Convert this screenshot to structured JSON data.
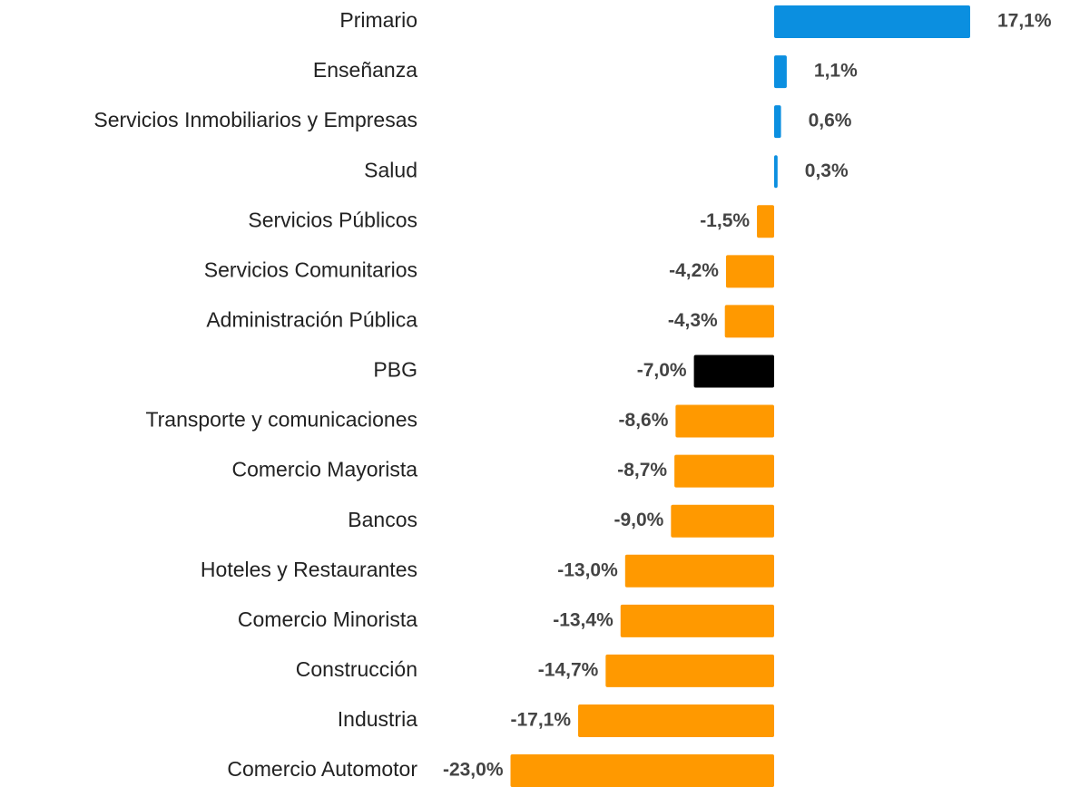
{
  "chart_data": {
    "type": "bar",
    "orientation": "horizontal",
    "categories": [
      "Primario",
      "Enseñanza",
      "Servicios Inmobiliarios y Empresas",
      "Salud",
      "Servicios Públicos",
      "Servicios Comunitarios",
      "Administración Pública",
      "PBG",
      "Transporte y comunicaciones",
      "Comercio Mayorista",
      "Bancos",
      "Hoteles y Restaurantes",
      "Comercio Minorista",
      "Construcción",
      "Industria",
      "Comercio Automotor"
    ],
    "values": [
      17.1,
      1.1,
      0.6,
      0.3,
      -1.5,
      -4.2,
      -4.3,
      -7.0,
      -8.6,
      -8.7,
      -9.0,
      -13.0,
      -13.4,
      -14.7,
      -17.1,
      -23.0
    ],
    "value_labels": [
      "17,1%",
      "1,1%",
      "0,6%",
      "0,3%",
      "-1,5%",
      "-4,2%",
      "-4,3%",
      "-7,0%",
      "-8,6%",
      "-8,7%",
      "-9,0%",
      "-13,0%",
      "-13,4%",
      "-14,7%",
      "-17,1%",
      "-23,0%"
    ],
    "colors": [
      "#0b8fe0",
      "#0b8fe0",
      "#0b8fe0",
      "#0b8fe0",
      "#ff9900",
      "#ff9900",
      "#ff9900",
      "#000000",
      "#ff9900",
      "#ff9900",
      "#ff9900",
      "#ff9900",
      "#ff9900",
      "#ff9900",
      "#ff9900",
      "#ff9900"
    ]
  }
}
